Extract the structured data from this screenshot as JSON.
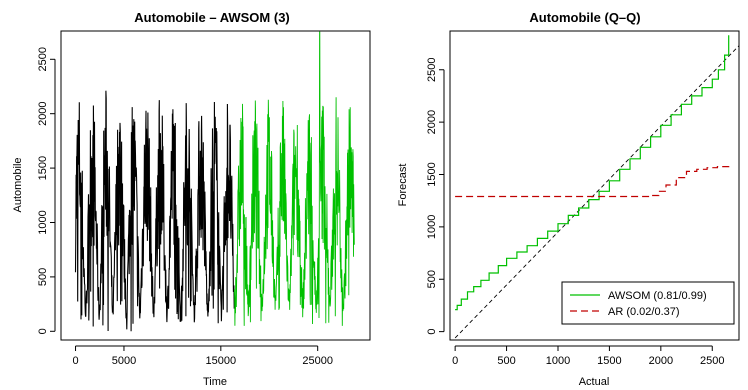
{
  "chart_data": [
    {
      "type": "line",
      "title": "Automobile – AWSOM (3)",
      "xlabel": "Time",
      "ylabel": "Automobile",
      "xlim": [
        -1500,
        30400
      ],
      "ylim": [
        -80,
        2760
      ],
      "xticks": [
        0,
        5000,
        15000,
        25000
      ],
      "xtick_labels": [
        "0",
        "5000",
        "15000",
        "25000"
      ],
      "yticks": [
        0,
        500,
        1000,
        1500,
        2000,
        2500
      ],
      "ytick_labels": [
        "0",
        "500",
        "1000",
        "1500",
        "2000",
        "2500"
      ],
      "series": [
        {
          "segment": "observed",
          "color": "#000000",
          "x_range": [
            0,
            16400
          ],
          "value_range": [
            0,
            2400
          ],
          "summary": "dense periodic traffic signal oscillating roughly between 0 and 2400"
        },
        {
          "segment": "forecast",
          "color": "#00c000",
          "x_range": [
            16400,
            28800
          ],
          "value_range": [
            50,
            2750
          ],
          "summary": "dense forecast signal oscillating roughly between 100 and 2400 with a spike near 2750 around t=25000"
        }
      ]
    },
    {
      "type": "line",
      "title": "Automobile (Q–Q)",
      "xlabel": "Actual",
      "ylabel": "Forecast",
      "xlim": [
        -50,
        2760
      ],
      "ylim": [
        -80,
        2870
      ],
      "xticks": [
        0,
        500,
        1000,
        1500,
        2000,
        2500
      ],
      "xtick_labels": [
        "0",
        "500",
        "1000",
        "1500",
        "2000",
        "2500"
      ],
      "yticks": [
        0,
        500,
        1000,
        1500,
        2000,
        2500
      ],
      "ytick_labels": [
        "0",
        "500",
        "1000",
        "1500",
        "2000",
        "2500"
      ],
      "reference_line": {
        "x": [
          0,
          2760
        ],
        "y": [
          -60,
          2730
        ],
        "style": "dashed",
        "color": "#000000"
      },
      "series": [
        {
          "name": "AWSOM (0.81/0.99)",
          "color": "#00c000",
          "style": "solid",
          "x": [
            0,
            20,
            60,
            120,
            180,
            250,
            330,
            420,
            500,
            600,
            700,
            800,
            900,
            1000,
            1100,
            1200,
            1300,
            1400,
            1500,
            1600,
            1700,
            1800,
            1900,
            2000,
            2100,
            2200,
            2300,
            2400,
            2500,
            2560,
            2620,
            2660
          ],
          "y": [
            210,
            250,
            310,
            380,
            430,
            490,
            560,
            630,
            700,
            760,
            820,
            890,
            960,
            1030,
            1110,
            1180,
            1260,
            1340,
            1440,
            1550,
            1650,
            1760,
            1860,
            1970,
            2070,
            2170,
            2250,
            2330,
            2410,
            2500,
            2640,
            2830
          ]
        },
        {
          "name": "AR (0.02/0.37)",
          "color": "#c00000",
          "style": "dashed",
          "x": [
            0,
            500,
            1000,
            1500,
            1800,
            1900,
            1980,
            2050,
            2150,
            2250,
            2350,
            2450,
            2550,
            2660
          ],
          "y": [
            1290,
            1290,
            1290,
            1290,
            1290,
            1300,
            1340,
            1400,
            1470,
            1530,
            1550,
            1565,
            1575,
            1580
          ]
        }
      ],
      "legend": {
        "position": "bottom-right"
      }
    }
  ]
}
